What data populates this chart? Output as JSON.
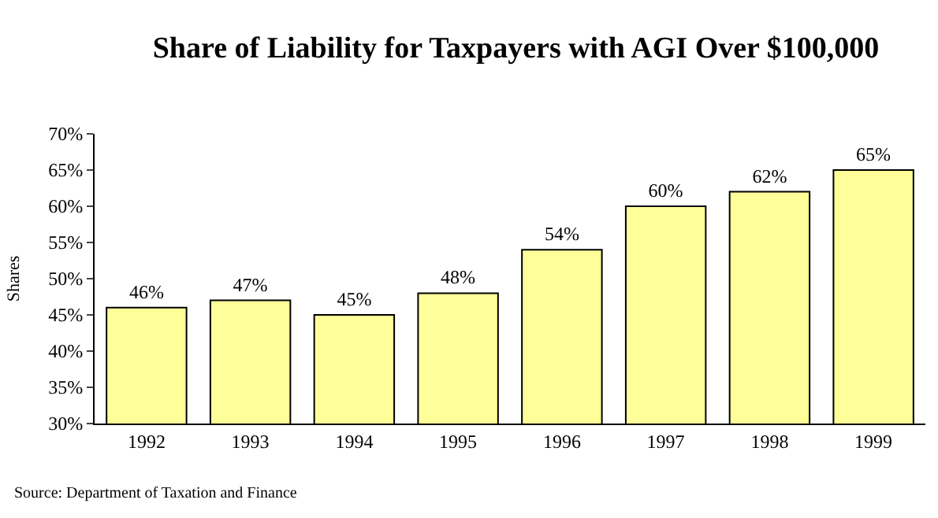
{
  "chart_data": {
    "type": "bar",
    "title": "Share of Liability for Taxpayers with AGI Over $100,000",
    "ylabel": "Shares",
    "categories": [
      "1992",
      "1993",
      "1994",
      "1995",
      "1996",
      "1997",
      "1998",
      "1999"
    ],
    "values": [
      46,
      47,
      45,
      48,
      54,
      60,
      62,
      65
    ],
    "value_labels": [
      "46%",
      "47%",
      "45%",
      "48%",
      "54%",
      "60%",
      "62%",
      "65%"
    ],
    "color": "#ffff99",
    "ylim": [
      30,
      70
    ],
    "yticks": [
      {
        "value": 30,
        "label": "30%"
      },
      {
        "value": 35,
        "label": "35%"
      },
      {
        "value": 40,
        "label": "40%"
      },
      {
        "value": 45,
        "label": "45%"
      },
      {
        "value": 50,
        "label": "50%"
      },
      {
        "value": 55,
        "label": "55%"
      },
      {
        "value": 60,
        "label": "60%"
      },
      {
        "value": 65,
        "label": "65%"
      },
      {
        "value": 70,
        "label": "70%"
      }
    ],
    "annotations": [
      "Source: Department of Taxation and Finance"
    ]
  }
}
